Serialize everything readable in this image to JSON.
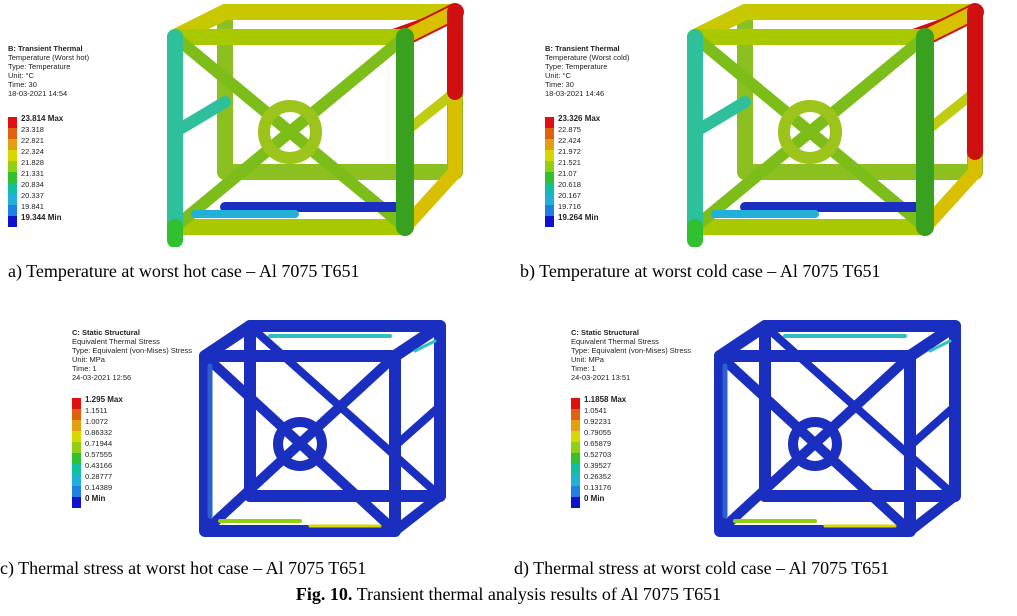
{
  "panels": [
    {
      "legend": {
        "system": "B: Transient Thermal",
        "name": "Temperature (Worst hot)",
        "type": "Type: Temperature",
        "unit": "Unit: °C",
        "time": "Time: 30",
        "date": "18-03-2021 14:54"
      },
      "scale": [
        "23.814 Max",
        "23.318",
        "22.821",
        "22.324",
        "21.828",
        "21.331",
        "20.834",
        "20.337",
        "19.841",
        "19.344 Min"
      ],
      "caption": "a) Temperature at worst hot case – Al 7075 T651"
    },
    {
      "legend": {
        "system": "B: Transient Thermal",
        "name": "Temperature (Worst cold)",
        "type": "Type: Temperature",
        "unit": "Unit: °C",
        "time": "Time: 30",
        "date": "18-03-2021 14:46"
      },
      "scale": [
        "23.326 Max",
        "22.875",
        "22.424",
        "21.972",
        "21.521",
        "21.07",
        "20.618",
        "20.167",
        "19.716",
        "19.264 Min"
      ],
      "caption": "b) Temperature at worst cold case – Al 7075 T651"
    },
    {
      "legend": {
        "system": "C: Static Structural",
        "name": "Equivalent Thermal Stress",
        "type": "Type: Equivalent (von-Mises) Stress",
        "unit": "Unit: MPa",
        "time": "Time: 1",
        "date": "24-03-2021 12:56"
      },
      "scale": [
        "1.295 Max",
        "1.1511",
        "1.0072",
        "0.86332",
        "0.71944",
        "0.57555",
        "0.43166",
        "0.28777",
        "0.14389",
        "0 Min"
      ],
      "caption": "c) Thermal stress at worst hot case – Al 7075 T651"
    },
    {
      "legend": {
        "system": "C: Static Structural",
        "name": "Equivalent Thermal Stress",
        "type": "Type: Equivalent (von-Mises) Stress",
        "unit": "Unit: MPa",
        "time": "Time: 1",
        "date": "24-03-2021 13:51"
      },
      "scale": [
        "1.1858 Max",
        "1.0541",
        "0.92231",
        "0.79055",
        "0.65879",
        "0.52703",
        "0.39527",
        "0.26352",
        "0.13176",
        "0 Min"
      ],
      "caption": "d) Thermal stress at worst cold case – Al 7075 T651"
    }
  ],
  "figure": {
    "label": "Fig. 10.",
    "text": " Transient thermal analysis results of Al 7075 T651"
  },
  "colors": {
    "scale": [
      "#e01010",
      "#e06010",
      "#e0a010",
      "#d8d800",
      "#90d010",
      "#30c030",
      "#10c0a0",
      "#20b0d8",
      "#2080e0",
      "#1010d0"
    ],
    "frame_blue": "#1a2fbf"
  }
}
